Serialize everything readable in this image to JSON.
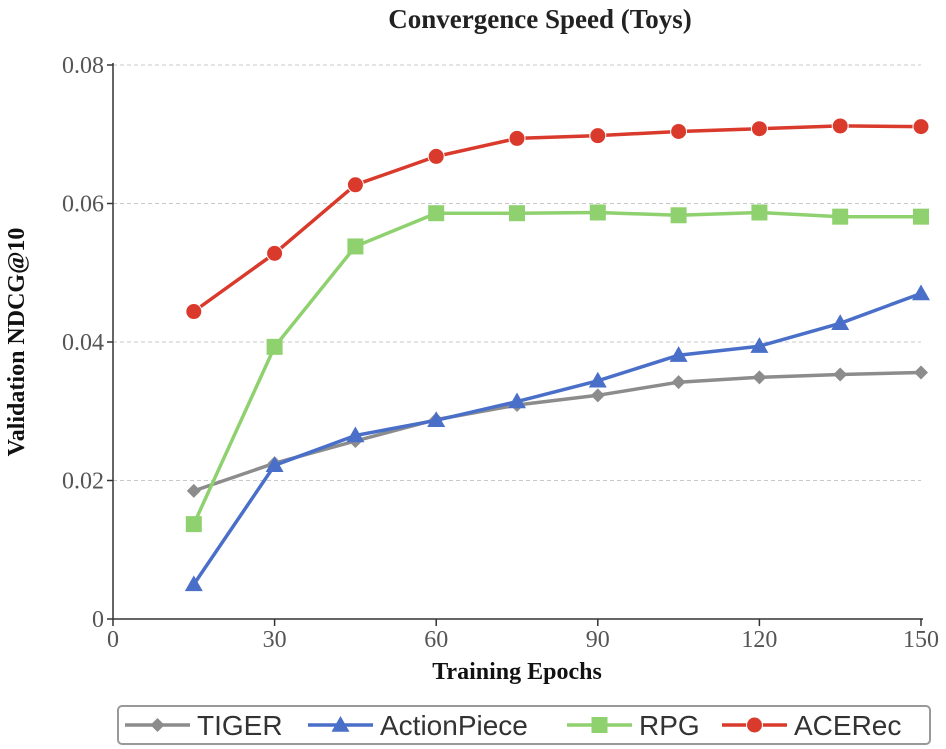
{
  "chart_data": {
    "type": "line",
    "title": "Convergence Speed (Toys)",
    "xlabel": "Training Epochs",
    "ylabel": "Validation NDCG@10",
    "xlim": [
      0,
      150
    ],
    "ylim": [
      0,
      0.08
    ],
    "x_ticks": [
      0,
      30,
      60,
      90,
      120,
      150
    ],
    "x_tick_labels": [
      "0",
      "30",
      "60",
      "90",
      "120",
      "150"
    ],
    "y_ticks": [
      0,
      0.02,
      0.04,
      0.06,
      0.08
    ],
    "y_tick_labels": [
      "0",
      "0.02",
      "0.04",
      "0.06",
      "0.08"
    ],
    "grid": "horizontal dashed",
    "legend_position": "bottom",
    "x": [
      15,
      30,
      45,
      60,
      75,
      90,
      105,
      120,
      135,
      150
    ],
    "series": [
      {
        "name": "TIGER",
        "marker": "diamond",
        "color": "#8c8c8c",
        "values": [
          0.0185,
          0.0225,
          0.0257,
          0.0288,
          0.0309,
          0.0323,
          0.0342,
          0.0349,
          0.0353,
          0.0356
        ]
      },
      {
        "name": "ActionPiece",
        "marker": "triangle",
        "color": "#4a6fc9",
        "values": [
          0.005,
          0.0222,
          0.0265,
          0.0287,
          0.0314,
          0.0344,
          0.0381,
          0.0394,
          0.0427,
          0.047
        ]
      },
      {
        "name": "RPG",
        "marker": "square",
        "color": "#8fd16f",
        "values": [
          0.0137,
          0.0393,
          0.0538,
          0.0586,
          0.0586,
          0.0587,
          0.0583,
          0.0587,
          0.0581,
          0.0581
        ]
      },
      {
        "name": "ACERec",
        "marker": "circle",
        "color": "#d93a2c",
        "values": [
          0.0444,
          0.0528,
          0.0627,
          0.0668,
          0.0694,
          0.0698,
          0.0704,
          0.0708,
          0.0712,
          0.0711
        ]
      }
    ]
  }
}
